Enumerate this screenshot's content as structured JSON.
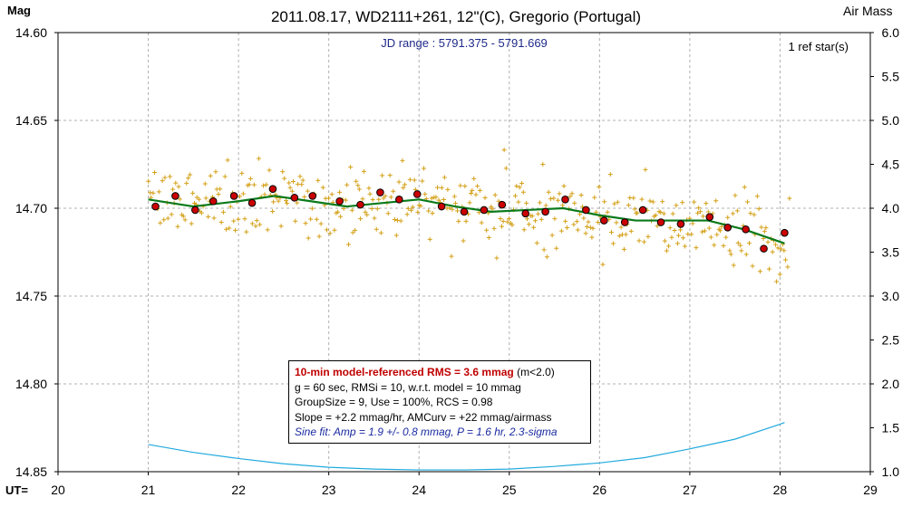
{
  "header": {
    "title": "2011.08.17, WD2111+261, 12\"(C), Gregorio (Portugal)",
    "y_left_label": "Mag",
    "y_right_label": "Air Mass",
    "x_prefix": "UT=",
    "jd_range": "JD range : 5791.375 - 5791.669",
    "ref_stars": "1 ref star(s)"
  },
  "legend": {
    "rms_line": "10-min model-referenced RMS = 3.6 mmag",
    "rms_tail": "(m<2.0)",
    "line2": "g = 60 sec, RMSi = 10, w.r.t. model = 10 mmag",
    "line3": "GroupSize = 9, Use = 100%, RCS = 0.98",
    "line4": "Slope = +2.2 mmag/hr, AMCurv = +22 mmag/airmass",
    "line5": "Sine fit: Amp = 1.9 +/- 0.8 mmag, P = 1.6 hr, 2.3-sigma"
  },
  "chart_data": {
    "type": "scatter",
    "xlim": [
      20,
      29
    ],
    "ylim_mag": [
      14.6,
      14.85
    ],
    "ylim_airmass": [
      1.0,
      6.0
    ],
    "x_ticks": [
      20,
      21,
      22,
      23,
      24,
      25,
      26,
      27,
      28,
      29
    ],
    "y_ticks_mag": [
      "14.60",
      "14.65",
      "14.70",
      "14.75",
      "14.80",
      "14.85"
    ],
    "y_ticks_airmass": [
      "6.0",
      "5.5",
      "5.0",
      "4.5",
      "4.0",
      "3.5",
      "3.0",
      "2.5",
      "2.0",
      "1.5",
      "1.0"
    ],
    "grid": true,
    "colors": {
      "raw": "#d4a017",
      "binned_fill": "#cc0000",
      "model": "#0a7a1a",
      "airmass": "#22aadd",
      "grid": "#b0b0b0"
    },
    "binned": {
      "x": [
        21.08,
        21.3,
        21.52,
        21.72,
        21.95,
        22.15,
        22.38,
        22.62,
        22.82,
        23.12,
        23.35,
        23.57,
        23.78,
        23.98,
        24.25,
        24.5,
        24.72,
        24.92,
        25.18,
        25.4,
        25.62,
        25.85,
        26.05,
        26.28,
        26.48,
        26.68,
        26.9,
        27.22,
        27.42,
        27.62,
        27.82,
        28.05
      ],
      "y": [
        14.699,
        14.693,
        14.701,
        14.696,
        14.693,
        14.697,
        14.689,
        14.694,
        14.693,
        14.696,
        14.698,
        14.691,
        14.695,
        14.692,
        14.699,
        14.702,
        14.701,
        14.698,
        14.703,
        14.702,
        14.695,
        14.701,
        14.707,
        14.708,
        14.701,
        14.708,
        14.709,
        14.705,
        14.711,
        14.712,
        14.723,
        14.714
      ]
    },
    "model": {
      "x": [
        21.0,
        21.5,
        22.0,
        22.4,
        22.8,
        23.2,
        23.6,
        24.0,
        24.4,
        24.8,
        25.2,
        25.6,
        26.0,
        26.4,
        26.8,
        27.2,
        27.6,
        28.05
      ],
      "y": [
        14.695,
        14.699,
        14.696,
        14.693,
        14.696,
        14.699,
        14.697,
        14.695,
        14.699,
        14.702,
        14.701,
        14.7,
        14.704,
        14.707,
        14.707,
        14.707,
        14.712,
        14.72
      ]
    },
    "airmass": {
      "x": [
        21.0,
        21.5,
        22.0,
        22.5,
        23.0,
        23.5,
        24.0,
        24.5,
        25.0,
        25.5,
        26.0,
        26.5,
        27.0,
        27.5,
        28.0,
        28.05
      ],
      "y": [
        1.31,
        1.22,
        1.15,
        1.09,
        1.05,
        1.03,
        1.02,
        1.02,
        1.03,
        1.06,
        1.1,
        1.16,
        1.26,
        1.37,
        1.54,
        1.56
      ]
    },
    "raw_scatter": {
      "x_range": [
        21.0,
        28.1
      ],
      "sigma_mag": 0.01,
      "n_points": 420
    }
  }
}
